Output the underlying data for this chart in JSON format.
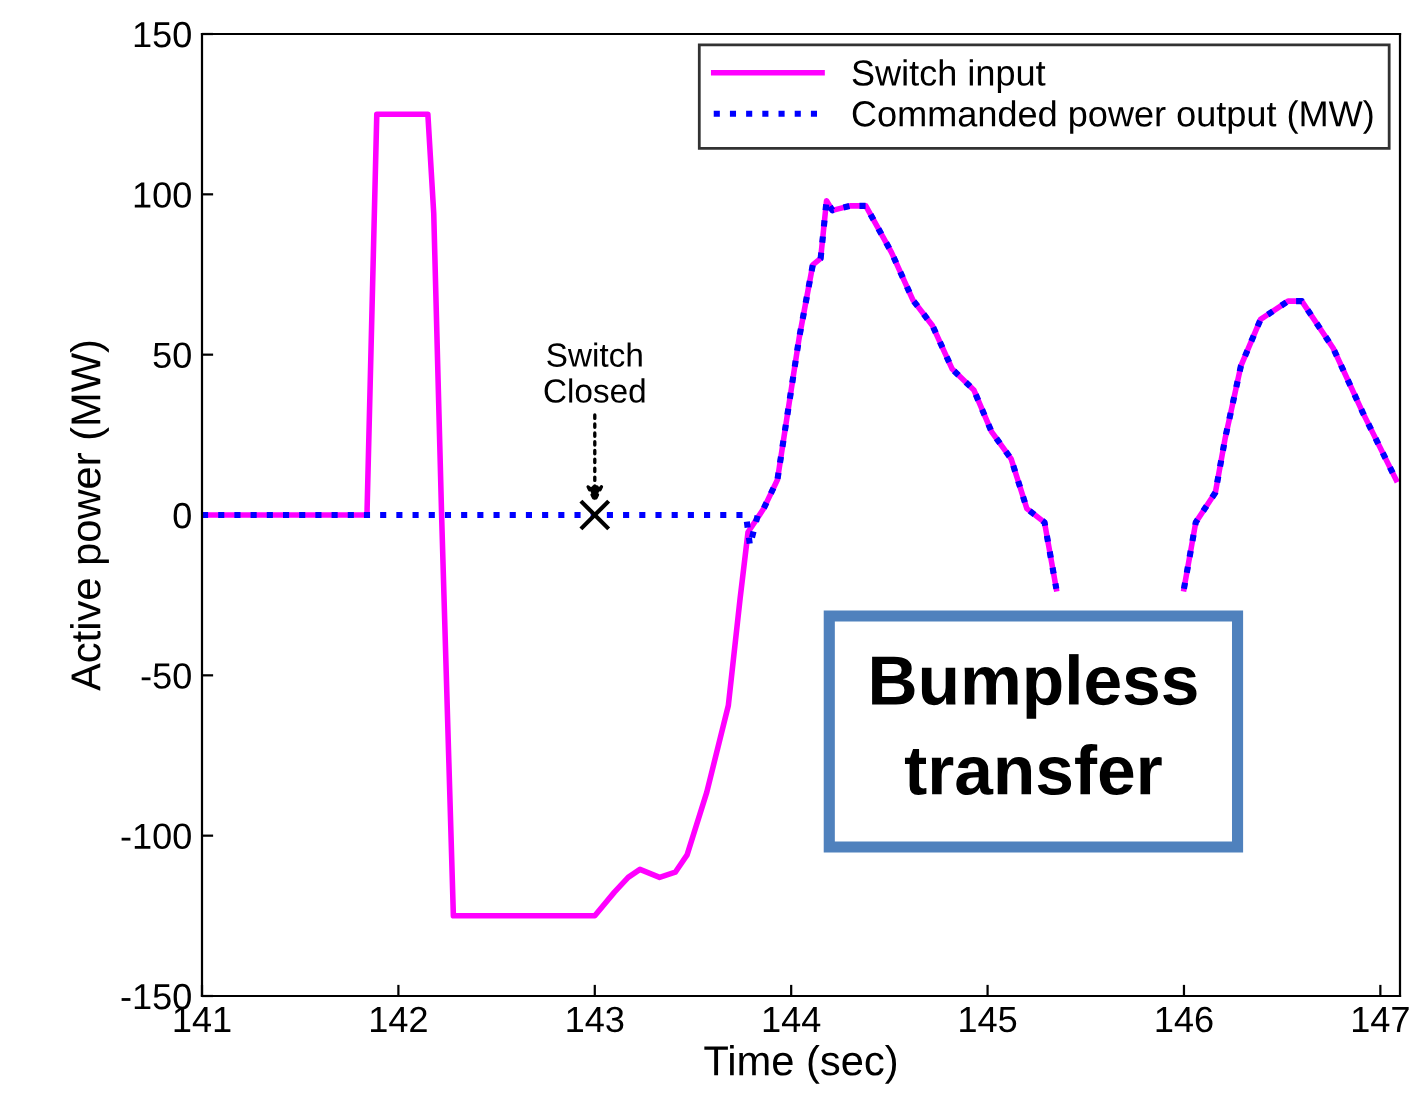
{
  "chart_data": {
    "type": "line",
    "xlabel": "Time (sec)",
    "ylabel": "Active power (MW)",
    "xlim": [
      141,
      147.1
    ],
    "xticks": [
      141,
      142,
      143,
      144,
      145,
      146,
      147
    ],
    "ylim": [
      -150,
      150
    ],
    "yticks": [
      -150,
      -100,
      -50,
      0,
      50,
      100,
      150
    ],
    "grid": false,
    "legend": "top right",
    "series": [
      {
        "name": "Switch input",
        "color": "#ff00ff",
        "line_style": "solid",
        "x": [
          141,
          141.84,
          141.89,
          142.15,
          142.18,
          142.22,
          142.28,
          143.0,
          143.1,
          143.17,
          143.23,
          143.33,
          143.41,
          143.47,
          143.57,
          143.68,
          143.74,
          143.78,
          143.86,
          143.93,
          144.04,
          144.11,
          144.15,
          144.18,
          144.21,
          144.3,
          144.38,
          144.51,
          144.62,
          144.72,
          144.82,
          144.93,
          145.02,
          145.12,
          145.2,
          145.29,
          145.35,
          145.7,
          146.0,
          146.06,
          146.16,
          146.21,
          146.29,
          146.39,
          146.53,
          146.6,
          146.76,
          146.91,
          147.08
        ],
        "values": [
          0,
          0,
          125,
          125,
          94,
          0,
          -125,
          -125,
          -117.6,
          -113,
          -110.5,
          -113,
          -111.4,
          -106,
          -86.5,
          -59.4,
          -26,
          -5.4,
          2,
          11,
          55,
          78,
          80,
          98,
          95,
          96.4,
          96.4,
          82,
          67,
          59,
          45.5,
          39,
          26,
          17.5,
          2,
          -2.3,
          -23,
          null,
          -23,
          -2.3,
          7,
          24,
          46.5,
          61,
          66.7,
          66.7,
          52,
          32,
          11
        ]
      },
      {
        "name": "Commanded power output (MW)",
        "color": "#0000ff",
        "line_style": "dotted",
        "x": [
          141,
          143.77,
          143.79,
          143.83,
          143.86,
          143.93,
          144.04,
          144.11,
          144.15,
          144.18,
          144.21,
          144.3,
          144.38,
          144.51,
          144.62,
          144.72,
          144.82,
          144.93,
          145.02,
          145.12,
          145.2,
          145.29,
          145.35,
          145.7,
          146.0,
          146.06,
          146.16,
          146.21,
          146.29,
          146.39,
          146.53,
          146.6,
          146.76,
          146.91,
          147.08
        ],
        "values": [
          0,
          0,
          -9.5,
          0,
          2,
          11,
          55,
          78,
          80,
          98,
          95,
          96.4,
          96.4,
          82,
          67,
          59,
          45.5,
          39,
          26,
          17.5,
          2,
          -2.3,
          -23,
          null,
          -23,
          -2.3,
          7,
          24,
          46.5,
          61,
          66.7,
          66.7,
          52,
          32,
          11
        ]
      }
    ],
    "annotations": [
      {
        "text": "Switch\nClosed",
        "x": 143.0,
        "y": 0
      },
      "Bumpless\ntransfer"
    ]
  }
}
